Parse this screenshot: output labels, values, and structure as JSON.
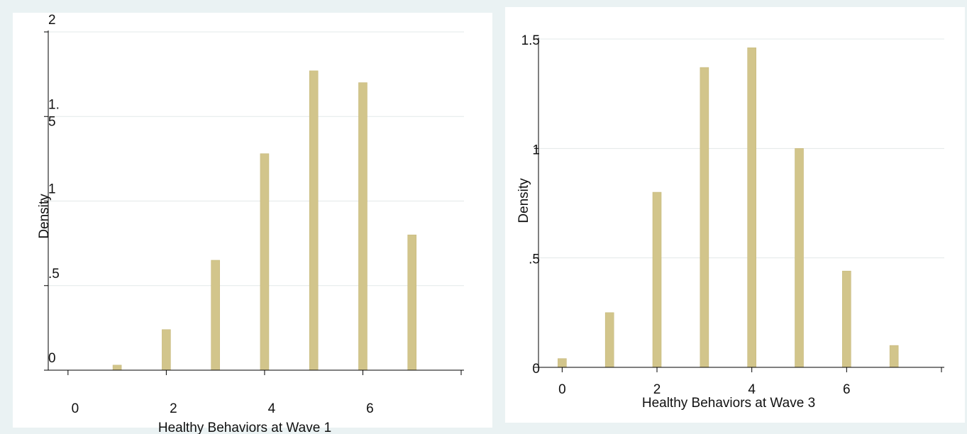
{
  "chart_data": [
    {
      "type": "bar",
      "xlabel": "Healthy Behaviors at Wave 1",
      "ylabel": "Density",
      "xlim": [
        -0.2,
        8.0
      ],
      "ylim": [
        0,
        2
      ],
      "x_ticks": [
        "0",
        "2",
        "4",
        "6"
      ],
      "x_tick_values": [
        0,
        2,
        4,
        6
      ],
      "y_ticks": [
        "0",
        ".5",
        "1",
        "1.\n5",
        "2"
      ],
      "y_tick_values": [
        0,
        0.5,
        1,
        1.5,
        2
      ],
      "grid": true,
      "bar_color": "#d2c58b",
      "x": [
        1,
        2,
        3,
        4,
        5,
        6,
        7
      ],
      "values": [
        0.03,
        0.24,
        0.65,
        1.28,
        1.77,
        1.7,
        0.8
      ]
    },
    {
      "type": "bar",
      "xlabel": "Healthy Behaviors at Wave 3",
      "ylabel": "Density",
      "xlim": [
        -0.2,
        8.0
      ],
      "ylim": [
        0,
        1.5
      ],
      "x_ticks": [
        "0",
        "2",
        "4",
        "6"
      ],
      "x_tick_values": [
        0,
        2,
        4,
        6
      ],
      "y_ticks": [
        "0",
        ".5",
        "1",
        "1.5"
      ],
      "y_tick_values": [
        0,
        0.5,
        1,
        1.5
      ],
      "grid": true,
      "bar_color": "#d2c58b",
      "x": [
        0,
        1,
        2,
        3,
        4,
        5,
        6,
        7
      ],
      "values": [
        0.04,
        0.25,
        0.8,
        1.37,
        1.46,
        1.0,
        0.44,
        0.1
      ]
    }
  ]
}
